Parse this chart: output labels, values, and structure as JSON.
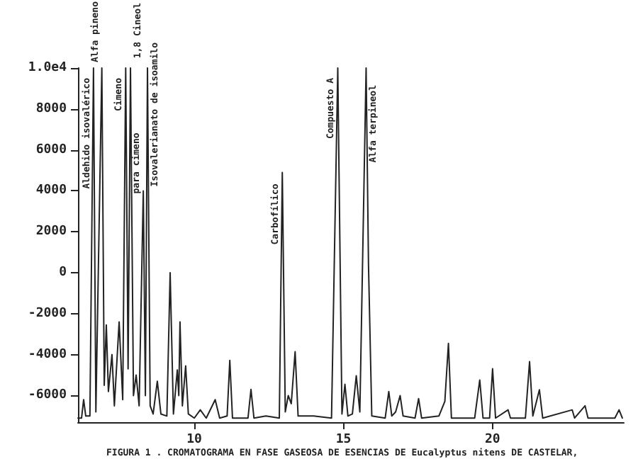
{
  "chart_data": {
    "type": "line",
    "title": "FIGURA 1 . CROMATOGRAMA EN FASE GASEOSA DE ESENCIAS DE Eucalyptus nitens DE CASTELAR,",
    "x": [
      6.1,
      6.22,
      6.29,
      6.36,
      6.5,
      6.62,
      6.7,
      6.9,
      6.98,
      7.05,
      7.12,
      7.24,
      7.32,
      7.48,
      7.6,
      7.7,
      7.78,
      7.86,
      7.96,
      8.05,
      8.15,
      8.29,
      8.36,
      8.43,
      8.52,
      8.62,
      8.76,
      8.88,
      9.08,
      9.19,
      9.3,
      9.43,
      9.48,
      9.52,
      9.6,
      9.71,
      9.8,
      10.0,
      10.2,
      10.4,
      10.7,
      10.85,
      11.1,
      11.19,
      11.28,
      11.8,
      11.9,
      12.0,
      12.4,
      12.85,
      12.95,
      13.05,
      13.15,
      13.25,
      13.38,
      13.48,
      14.0,
      14.6,
      14.81,
      14.95,
      15.05,
      15.15,
      15.3,
      15.43,
      15.55,
      15.76,
      15.84,
      15.95,
      16.4,
      16.52,
      16.62,
      16.75,
      16.9,
      17.0,
      17.4,
      17.52,
      17.62,
      18.2,
      18.4,
      18.52,
      18.62,
      19.4,
      19.57,
      19.68,
      19.9,
      20.0,
      20.1,
      20.52,
      20.6,
      21.1,
      21.24,
      21.35,
      21.57,
      21.68,
      22.67,
      22.75,
      23.1,
      23.2,
      24.1,
      24.24,
      24.35
    ],
    "series": [
      {
        "color": "#222222",
        "values": [
          -7100,
          -7100,
          -6200,
          -7000,
          -7000,
          10000,
          -6800,
          10000,
          -5500,
          -2550,
          -5800,
          -4000,
          -6500,
          -2400,
          -6200,
          10000,
          -4700,
          10000,
          -6000,
          -5000,
          -6500,
          4000,
          -6000,
          10000,
          -6500,
          -6900,
          -5300,
          -6900,
          -7000,
          0,
          -6900,
          -4750,
          -6000,
          -2400,
          -6500,
          -4550,
          -6900,
          -7100,
          -6700,
          -7100,
          -6200,
          -7100,
          -7000,
          -4280,
          -7100,
          -7100,
          -5700,
          -7100,
          -7000,
          -7100,
          4900,
          -6800,
          -6000,
          -6400,
          -3860,
          -7000,
          -7000,
          -7100,
          10000,
          -6900,
          -5450,
          -7000,
          -6900,
          -5030,
          -6800,
          10000,
          400,
          -7000,
          -7100,
          -5800,
          -7000,
          -6800,
          -6000,
          -7000,
          -7100,
          -6150,
          -7100,
          -7000,
          -6280,
          -3450,
          -7100,
          -7100,
          -5240,
          -7100,
          -7100,
          -4690,
          -7100,
          -6700,
          -7100,
          -7100,
          -4340,
          -7000,
          -5720,
          -7100,
          -6700,
          -7100,
          -6500,
          -7100,
          -7100,
          -6700,
          -7100
        ]
      }
    ],
    "xlim": [
      6.1,
      24.4
    ],
    "xticks": [
      10,
      15,
      20
    ],
    "ylim": [
      -7300,
      10000
    ],
    "yticks": [
      -6000,
      -4000,
      -2000,
      0,
      2000,
      4000,
      6000,
      8000,
      {
        "value": 10000,
        "label": "1.0e4"
      }
    ],
    "grid": false,
    "marker": "none",
    "line_style": "solid",
    "annotations": [
      {
        "text": "Aldehido isovalérico",
        "x": 6.62,
        "y": 10000
      },
      {
        "text": "Alfa pineno",
        "x": 6.9,
        "y": 10000
      },
      {
        "text": "Cimeno",
        "x": 7.7,
        "y": 10000
      },
      {
        "text": "1,8 Cineol",
        "x": 7.86,
        "y": 10000
      },
      {
        "text": "para cimeno",
        "x": 8.29,
        "y": 4000
      },
      {
        "text": "Isovalerianato de isoamilo",
        "x": 8.43,
        "y": 10000
      },
      {
        "text": "Carbofílico",
        "x": 12.95,
        "y": 4900
      },
      {
        "text": "Compuesto A",
        "x": 14.81,
        "y": 10000
      },
      {
        "text": "Alfa terpineol",
        "x": 15.76,
        "y": 10000
      }
    ]
  }
}
